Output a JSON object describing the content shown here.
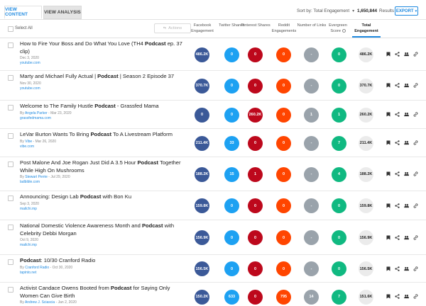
{
  "tabs": [
    {
      "label": "VIEW CONTENT"
    },
    {
      "label": "VIEW ANALYSIS"
    }
  ],
  "sort_by": "Sort by: Total Engagement",
  "results_count": "1,650,844",
  "results_label": "Results",
  "export_label": "EXPORT",
  "select_all_label": "Select All",
  "actions_label": "Actions",
  "columns": {
    "facebook": "Facebook Engagement",
    "twitter": "Twitter Shares",
    "pinterest": "Pinterest Shares",
    "reddit": "Reddit Engagements",
    "links": "Number of Links",
    "evergreen": "Evergreen Score",
    "total": "Total Engagement"
  },
  "colors": {
    "accent": "#1f8ae0",
    "facebook": "#3b5998",
    "twitter": "#1da1f2",
    "pinterest": "#bd081c",
    "reddit": "#ff4500",
    "links": "#9aa3ab",
    "evergreen": "#10b981",
    "total": "#ebebeb"
  },
  "rows": [
    {
      "title_pre": "How to Fire Your Boss and Do What You Love (TH4 ",
      "title_bold": "Podcast",
      "title_post": " ep. 37 clip)",
      "author": "",
      "date": "Dec 3, 2020",
      "domain": "youtube.com",
      "fb": "486.2K",
      "tw": "0",
      "pi": "0",
      "re": "0",
      "li": "-",
      "ev": "0",
      "tot": "486.2K"
    },
    {
      "title_pre": "Marty and Michael Fully Actual | ",
      "title_bold": "Podcast",
      "title_post": " | Season 2 Episode 37",
      "author": "",
      "date": "Nov 30, 2020",
      "domain": "youtube.com",
      "fb": "370.7K",
      "tw": "0",
      "pi": "0",
      "re": "0",
      "li": "-",
      "ev": "0",
      "tot": "370.7K"
    },
    {
      "title_pre": "Welcome to The Family Hustle ",
      "title_bold": "Podcast",
      "title_post": " - Grassfed Mama",
      "author": "Angela Parker",
      "date": "Mar 23, 2020",
      "domain": "grassfedmama.com",
      "fb": "0",
      "tw": "0",
      "pi": "260.2K",
      "re": "0",
      "li": "1",
      "ev": "1",
      "tot": "260.2K"
    },
    {
      "title_pre": "LeVar Burton Wants To Bring ",
      "title_bold": "Podcast",
      "title_post": " To A Livestream Platform",
      "author": "Vibe",
      "date": "Mar 26, 2020",
      "domain": "vibe.com",
      "fb": "211.4K",
      "tw": "33",
      "pi": "0",
      "re": "0",
      "li": "-",
      "ev": "7",
      "tot": "211.4K"
    },
    {
      "title_pre": "Post Malone And Joe Rogan Just Did A 3.5 Hour ",
      "title_bold": "Podcast",
      "title_post": " Together While High On Mushrooms",
      "author": "Stewart Perrie",
      "date": "Jul 29, 2020",
      "domain": "ladbible.com",
      "fb": "188.2K",
      "tw": "15",
      "pi": "1",
      "re": "0",
      "li": "-",
      "ev": "4",
      "tot": "188.2K"
    },
    {
      "title_pre": "Announcing: Design Lab ",
      "title_bold": "Podcast",
      "title_post": " with Bon Ku",
      "author": "",
      "date": "Sep 3, 2020",
      "domain": "mailchi.mp",
      "fb": "159.8K",
      "tw": "0",
      "pi": "0",
      "re": "0",
      "li": "-",
      "ev": "0",
      "tot": "159.8K"
    },
    {
      "title_pre": "National Domestic Violence Awareness Month and ",
      "title_bold": "Podcast",
      "title_post": " with Celebrity Debbi Morgan",
      "author": "",
      "date": "Oct 9, 2020",
      "domain": "mailchi.mp",
      "fb": "156.9K",
      "tw": "0",
      "pi": "0",
      "re": "0",
      "li": "-",
      "ev": "0",
      "tot": "156.9K"
    },
    {
      "title_pre": "",
      "title_bold": "Podcast",
      "title_post": ": 10/30 Cranford Radio",
      "author": "Cranford Radio",
      "date": "Oct 30, 2020",
      "domain": "tapinto.net",
      "fb": "156.5K",
      "tw": "0",
      "pi": "0",
      "re": "0",
      "li": "-",
      "ev": "0",
      "tot": "156.5K"
    },
    {
      "title_pre": "Activist Candace Owens Booted from ",
      "title_bold": "Podcast",
      "title_post": " for Saying Only Women Can Give Birth",
      "author": "Andrew J. Sciascia",
      "date": "Jan 2, 2020",
      "domain": "",
      "fb": "150.2K",
      "tw": "633",
      "pi": "0",
      "re": "795",
      "li": "14",
      "ev": "7",
      "tot": "151.6K"
    }
  ]
}
